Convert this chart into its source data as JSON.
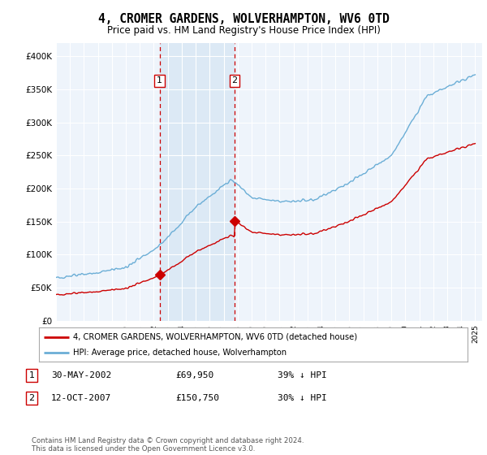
{
  "title": "4, CROMER GARDENS, WOLVERHAMPTON, WV6 0TD",
  "subtitle": "Price paid vs. HM Land Registry's House Price Index (HPI)",
  "legend_line1": "4, CROMER GARDENS, WOLVERHAMPTON, WV6 0TD (detached house)",
  "legend_line2": "HPI: Average price, detached house, Wolverhampton",
  "annotation1_label": "1",
  "annotation1_date": "30-MAY-2002",
  "annotation1_price": "£69,950",
  "annotation1_hpi": "39% ↓ HPI",
  "annotation2_label": "2",
  "annotation2_date": "12-OCT-2007",
  "annotation2_price": "£150,750",
  "annotation2_hpi": "30% ↓ HPI",
  "footer": "Contains HM Land Registry data © Crown copyright and database right 2024.\nThis data is licensed under the Open Government Licence v3.0.",
  "hpi_color": "#6baed6",
  "price_color": "#cc0000",
  "vline_color": "#cc0000",
  "annotation_box_color": "#cc0000",
  "shade_color": "#dce9f5",
  "background_plot": "#eef4fb",
  "ylim": [
    0,
    420000
  ],
  "yticks": [
    0,
    50000,
    100000,
    150000,
    200000,
    250000,
    300000,
    350000,
    400000
  ],
  "sale1_year": 2002.41,
  "sale1_price": 69950,
  "sale2_year": 2007.78,
  "sale2_price": 150750
}
